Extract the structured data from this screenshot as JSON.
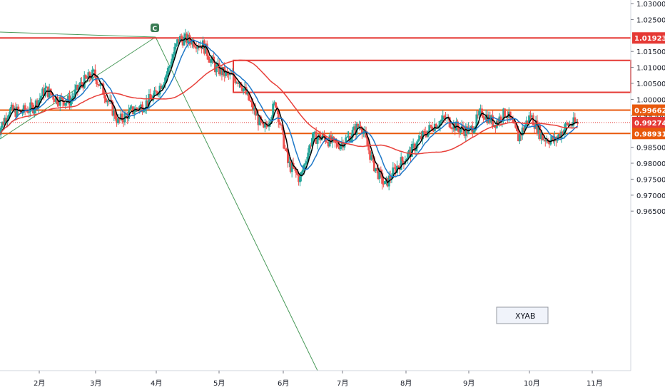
{
  "chart_data": {
    "type": "candlestick",
    "title": "",
    "x_tick_labels": [
      "2月",
      "3月",
      "4月",
      "5月",
      "6月",
      "7月",
      "8月",
      "9月",
      "10月",
      "11月"
    ],
    "y_tick_labels": [
      "1.03000",
      "1.02500",
      "1.01500",
      "1.01000",
      "1.00500",
      "1.00000",
      "0.99500",
      "0.98500",
      "0.98000",
      "0.97500",
      "0.97000",
      "0.96500"
    ],
    "ylim": [
      0.9608,
      1.031
    ],
    "grid": false,
    "colors": {
      "up": "#26a69a",
      "down": "#ef5350",
      "ma_fast": "#000000",
      "ma_mid": "#1e78c8",
      "ma_slow": "#e8403a",
      "support_resistance": "#e8590c",
      "level_box": "#e53935",
      "trendline": "#4a9a5a"
    },
    "price_tags": [
      {
        "label": "1.01923",
        "value": 1.01923,
        "color": "#e53935"
      },
      {
        "label": "0.99662",
        "value": 0.99662,
        "color": "#e8590c"
      },
      {
        "label": "0.99274",
        "value": 0.99274,
        "color": "#e53935"
      },
      {
        "label": "0.98931",
        "value": 0.98931,
        "color": "#e8590c"
      }
    ],
    "horizontal_levels": [
      {
        "value": 1.01923,
        "color": "#e53935",
        "style": "solid"
      },
      {
        "value": 0.99662,
        "color": "#e8590c",
        "style": "solid"
      },
      {
        "value": 0.98931,
        "color": "#e8590c",
        "style": "solid"
      },
      {
        "value": 0.99274,
        "color": "#e53935",
        "style": "dotted"
      }
    ],
    "zone_box": {
      "top": 1.0122,
      "bottom": 1.0022,
      "start_month": 5.2
    },
    "annotation_label": "XYAB",
    "pivot_marker": "C",
    "series": [
      {
        "name": "",
        "kind": "candles",
        "x_months": [
          1.3,
          1.5,
          1.7,
          1.9,
          2.1,
          2.3,
          2.5,
          2.7,
          2.9,
          3.1,
          3.3,
          3.5,
          3.7,
          3.9,
          4.1,
          4.3,
          4.5,
          4.7,
          4.9,
          5.1,
          5.3,
          5.5,
          5.7,
          5.9,
          6.1,
          6.3,
          6.5,
          6.7,
          6.9,
          7.1,
          7.3,
          7.5,
          7.7,
          7.9,
          8.1,
          8.3,
          8.5,
          8.7,
          8.9,
          9.1,
          9.3,
          9.5,
          9.7,
          9.9,
          10.1,
          10.3,
          10.5,
          10.7,
          10.9
        ],
        "close": [
          0.989,
          0.9965,
          0.996,
          0.9975,
          1.003,
          1.0,
          0.9995,
          1.005,
          1.008,
          1.001,
          0.993,
          0.996,
          0.998,
          1.001,
          1.008,
          1.019,
          1.0185,
          1.017,
          1.01,
          1.0075,
          1.006,
          0.998,
          0.99,
          0.999,
          0.98,
          0.975,
          0.988,
          0.988,
          0.9855,
          0.988,
          0.9925,
          0.98,
          0.973,
          0.979,
          0.983,
          0.988,
          0.992,
          0.994,
          0.991,
          0.99,
          0.996,
          0.9925,
          0.996,
          0.988,
          0.995,
          0.988,
          0.987,
          0.992,
          0.9927
        ]
      }
    ]
  }
}
